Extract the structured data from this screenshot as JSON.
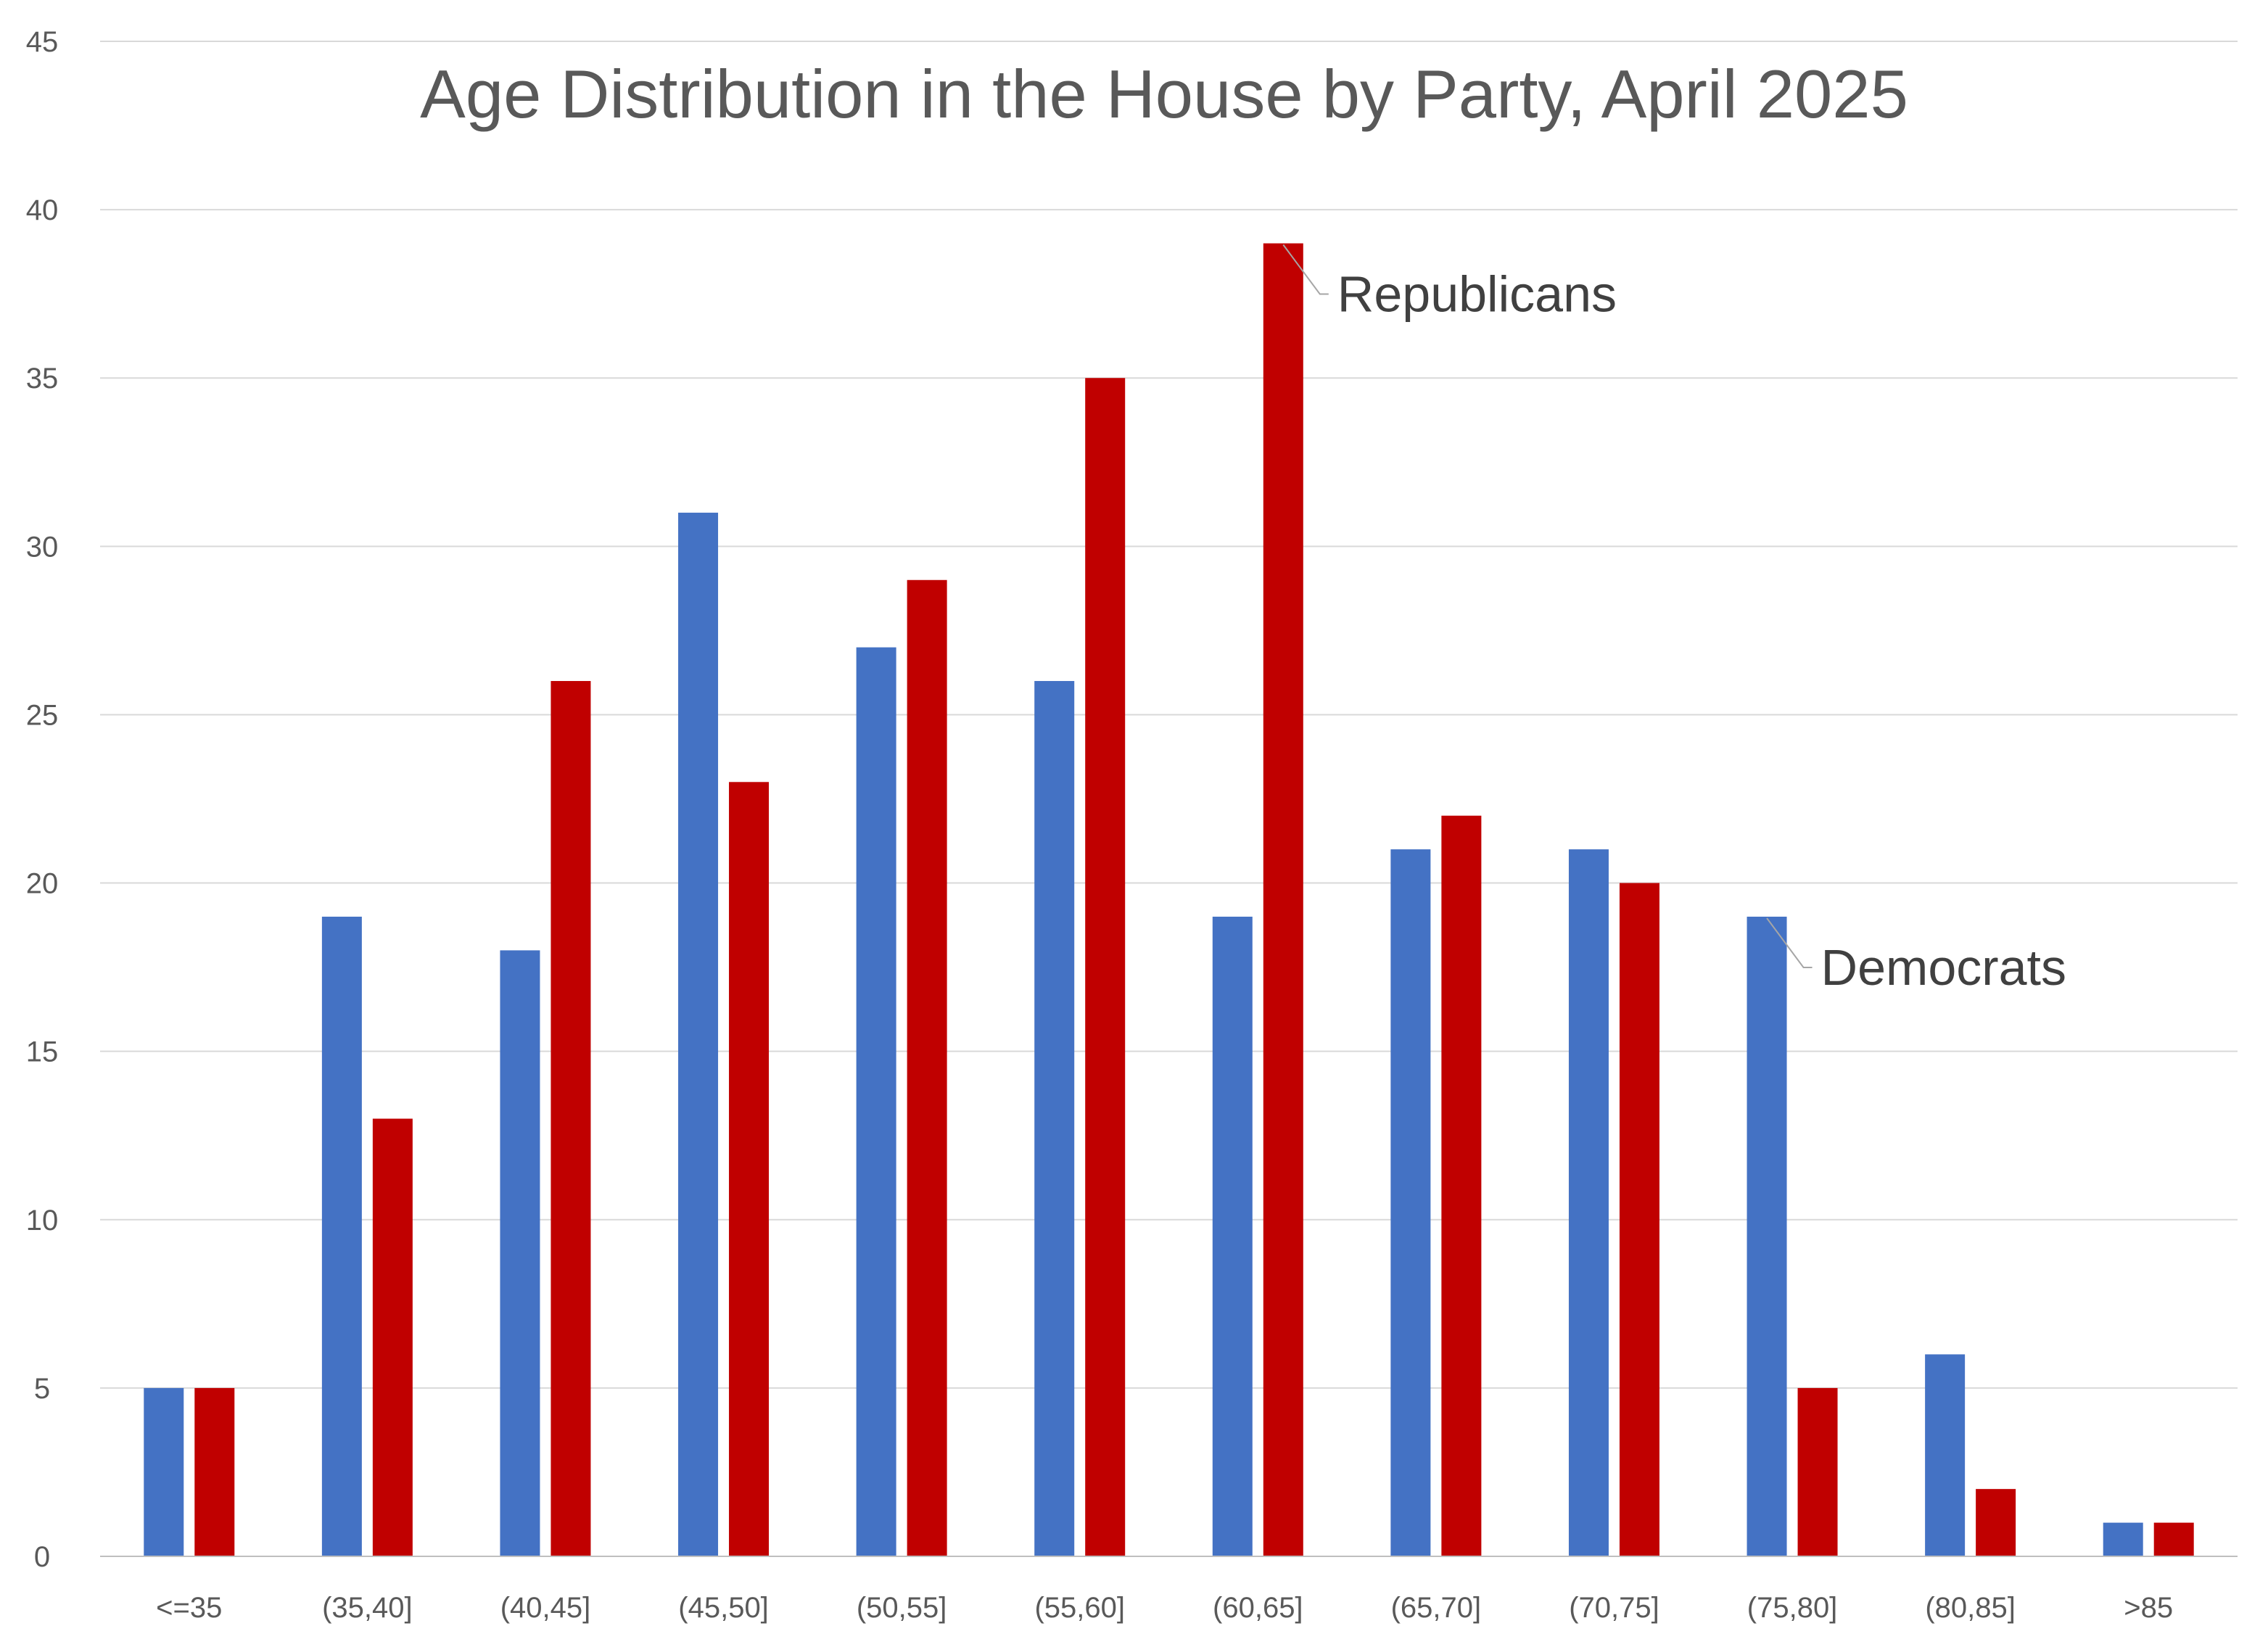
{
  "chart_data": {
    "type": "bar",
    "title": "Age Distribution in the House by Party, April 2025",
    "xlabel": "",
    "ylabel": "",
    "ylim": [
      0,
      45
    ],
    "yticks": [
      0,
      5,
      10,
      15,
      20,
      25,
      30,
      35,
      40,
      45
    ],
    "grid": true,
    "legend": "none",
    "categories": [
      "<=35",
      "(35,40]",
      "(40,45]",
      "(45,50]",
      "(50,55]",
      "(55,60]",
      "(60,65]",
      "(65,70]",
      "(70,75]",
      "(75,80]",
      "(80,85]",
      ">85"
    ],
    "series": [
      {
        "name": "Democrats",
        "color": "#4472c4",
        "values": [
          5,
          19,
          18,
          31,
          27,
          26,
          19,
          21,
          21,
          19,
          6,
          1
        ]
      },
      {
        "name": "Republicans",
        "color": "#c00000",
        "values": [
          5,
          13,
          26,
          23,
          29,
          35,
          39,
          22,
          20,
          5,
          2,
          1
        ]
      }
    ],
    "annotations": [
      {
        "text": "Republicans",
        "series": 1,
        "category": "(60,65]"
      },
      {
        "text": "Democrats",
        "series": 0,
        "category": "(75,80]"
      }
    ]
  }
}
